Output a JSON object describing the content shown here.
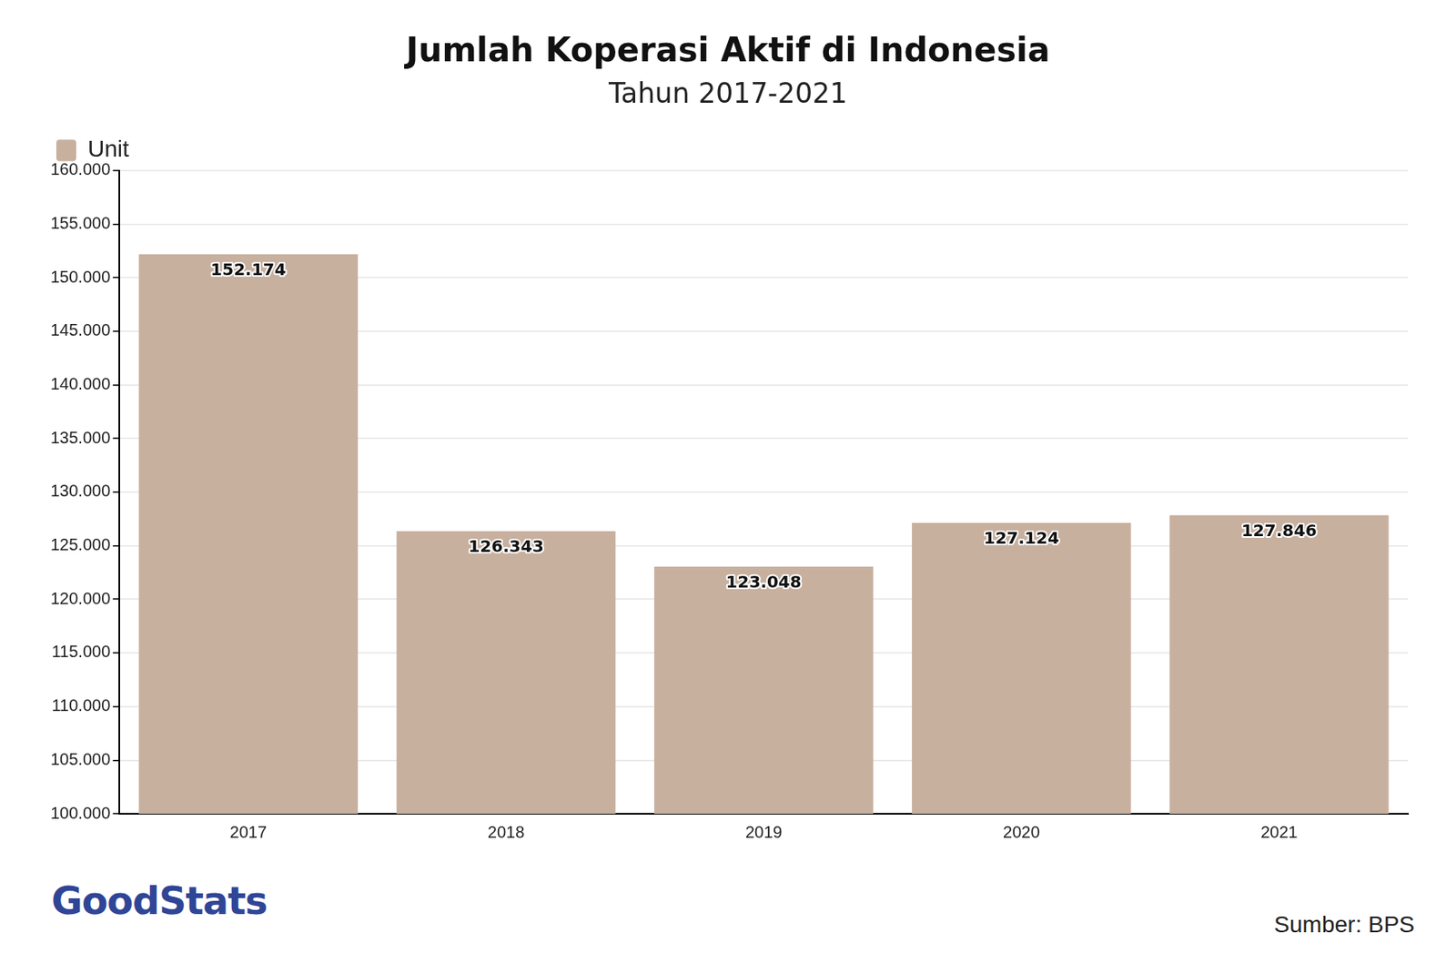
{
  "chart_data": {
    "type": "bar",
    "title": "Jumlah Koperasi Aktif di Indonesia",
    "subtitle": "Tahun 2017-2021",
    "categories": [
      "2017",
      "2018",
      "2019",
      "2020",
      "2021"
    ],
    "series": [
      {
        "name": "Unit",
        "color": "#c8b09f",
        "values": [
          152174,
          126343,
          123048,
          127124,
          127846
        ],
        "value_labels": [
          "152.174",
          "126.343",
          "123.048",
          "127.124",
          "127.846"
        ]
      }
    ],
    "ylim": [
      100000,
      160000
    ],
    "yticks": [
      {
        "value": 100000,
        "label": "100.000"
      },
      {
        "value": 105000,
        "label": "105.000"
      },
      {
        "value": 110000,
        "label": "110.000"
      },
      {
        "value": 115000,
        "label": "115.000"
      },
      {
        "value": 120000,
        "label": "120.000"
      },
      {
        "value": 125000,
        "label": "125.000"
      },
      {
        "value": 130000,
        "label": "130.000"
      },
      {
        "value": 135000,
        "label": "135.000"
      },
      {
        "value": 140000,
        "label": "140.000"
      },
      {
        "value": 145000,
        "label": "145.000"
      },
      {
        "value": 150000,
        "label": "150.000"
      },
      {
        "value": 155000,
        "label": "155.000"
      },
      {
        "value": 160000,
        "label": "160.000"
      }
    ],
    "grid": true,
    "legend": "top-left",
    "data_labels": true,
    "source": "Sumber: BPS",
    "brand": "GoodStats"
  }
}
